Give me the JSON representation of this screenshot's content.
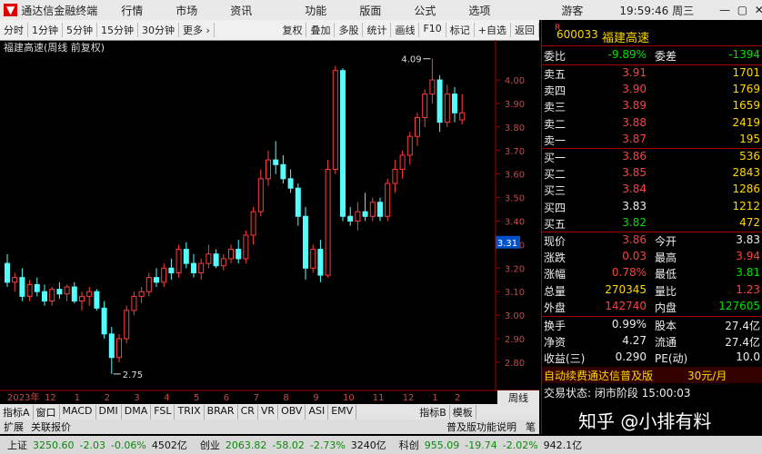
{
  "app": {
    "title": "通达信金融终端",
    "menu": [
      "行情",
      "市场",
      "资讯"
    ],
    "menu2": [
      "功能",
      "版面",
      "公式",
      "选项"
    ],
    "user": "游客",
    "time": "19:59:46 周三"
  },
  "toolbar": {
    "left": [
      "分时",
      "1分钟",
      "5分钟",
      "15分钟",
      "30分钟",
      "更多 ›"
    ],
    "right": [
      "复权",
      "叠加",
      "多股",
      "统计",
      "画线",
      "F10",
      "标记",
      "+自选",
      "返回"
    ]
  },
  "chart_data": {
    "type": "candlestick",
    "title": "福建高速(周线 前复权)",
    "categories": [
      "2023年",
      null,
      null,
      null,
      null,
      "12",
      null,
      null,
      null,
      "1",
      null,
      null,
      null,
      "2",
      null,
      null,
      null,
      "3",
      null,
      null,
      null,
      "4",
      null,
      null,
      null,
      "5",
      null,
      null,
      null,
      "6",
      null,
      null,
      null,
      "7",
      null,
      null,
      null,
      "8",
      null,
      null,
      null,
      "9",
      null,
      null,
      null,
      "10",
      null,
      null,
      null,
      "11",
      null,
      null,
      null,
      "12",
      null,
      null,
      null,
      "1",
      null,
      null,
      "2",
      null
    ],
    "open": [
      3.22,
      3.14,
      3.16,
      3.08,
      3.13,
      3.1,
      3.06,
      3.11,
      3.09,
      3.12,
      3.06,
      3.08,
      3.1,
      3.03,
      2.92,
      2.82,
      2.9,
      3.02,
      3.08,
      3.1,
      3.16,
      3.14,
      3.2,
      3.18,
      3.28,
      3.22,
      3.18,
      3.22,
      3.26,
      3.21,
      3.24,
      3.28,
      3.24,
      3.34,
      3.44,
      3.58,
      3.66,
      3.64,
      3.58,
      3.54,
      3.42,
      3.2,
      3.28,
      3.17,
      3.62,
      4.04,
      3.42,
      3.4,
      3.44,
      3.42,
      3.48,
      3.42,
      3.56,
      3.62,
      3.68,
      3.76,
      3.84,
      3.94,
      4.0,
      3.82,
      3.94,
      3.83
    ],
    "high": [
      3.26,
      3.18,
      3.2,
      3.15,
      3.16,
      3.13,
      3.12,
      3.14,
      3.13,
      3.14,
      3.1,
      3.12,
      3.11,
      3.06,
      2.95,
      2.92,
      3.04,
      3.1,
      3.12,
      3.18,
      3.2,
      3.22,
      3.24,
      3.3,
      3.31,
      3.26,
      3.24,
      3.3,
      3.28,
      3.26,
      3.3,
      3.32,
      3.36,
      3.46,
      3.62,
      3.7,
      3.74,
      3.68,
      3.62,
      3.56,
      3.46,
      3.3,
      3.32,
      3.66,
      4.06,
      4.05,
      3.46,
      3.48,
      3.52,
      3.5,
      3.5,
      3.58,
      3.66,
      3.7,
      3.78,
      3.86,
      3.96,
      4.09,
      4.02,
      3.98,
      3.97,
      3.94
    ],
    "low": [
      3.12,
      3.1,
      3.06,
      3.06,
      3.08,
      3.04,
      3.04,
      3.07,
      3.06,
      3.05,
      3.02,
      3.04,
      3.02,
      2.9,
      2.75,
      2.8,
      2.88,
      3.0,
      3.05,
      3.08,
      3.12,
      3.12,
      3.15,
      3.16,
      3.2,
      3.16,
      3.15,
      3.2,
      3.2,
      3.19,
      3.22,
      3.22,
      3.22,
      3.3,
      3.42,
      3.55,
      3.6,
      3.56,
      3.52,
      3.38,
      3.15,
      3.18,
      3.14,
      3.16,
      3.6,
      3.4,
      3.38,
      3.36,
      3.4,
      3.4,
      3.4,
      3.4,
      3.52,
      3.58,
      3.64,
      3.72,
      3.8,
      3.9,
      3.78,
      3.8,
      3.82,
      3.81
    ],
    "close": [
      3.14,
      3.16,
      3.08,
      3.13,
      3.1,
      3.06,
      3.11,
      3.09,
      3.12,
      3.06,
      3.08,
      3.1,
      3.03,
      2.92,
      2.82,
      2.9,
      3.02,
      3.08,
      3.1,
      3.16,
      3.14,
      3.2,
      3.18,
      3.28,
      3.22,
      3.18,
      3.22,
      3.26,
      3.21,
      3.24,
      3.28,
      3.24,
      3.34,
      3.44,
      3.58,
      3.66,
      3.64,
      3.58,
      3.54,
      3.42,
      3.2,
      3.28,
      3.17,
      3.62,
      4.04,
      3.42,
      3.4,
      3.44,
      3.42,
      3.48,
      3.42,
      3.56,
      3.62,
      3.68,
      3.76,
      3.84,
      3.94,
      4.0,
      3.82,
      3.94,
      3.86,
      3.86
    ],
    "up_color": "#ff3c3c",
    "down_color": "#54fcfc",
    "ylim": [
      2.68,
      4.17
    ],
    "yticks": [
      {
        "value": 2.8,
        "label": "2.80"
      },
      {
        "value": 2.9,
        "label": "2.90"
      },
      {
        "value": 3.0,
        "label": "3.00"
      },
      {
        "value": 3.1,
        "label": "3.10"
      },
      {
        "value": 3.2,
        "label": "3.20"
      },
      {
        "value": 3.3,
        "label": "3.30"
      },
      {
        "value": 3.4,
        "label": "3.40"
      },
      {
        "value": 3.5,
        "label": "3.50"
      },
      {
        "value": 3.6,
        "label": "3.60"
      },
      {
        "value": 3.7,
        "label": "3.70"
      },
      {
        "value": 3.8,
        "label": "3.80"
      },
      {
        "value": 3.9,
        "label": "3.90"
      },
      {
        "value": 4.0,
        "label": "4.00"
      }
    ],
    "high_label": 4.09,
    "low_label": 2.75,
    "cursor_value": 3.31,
    "grid": false
  },
  "tabs": {
    "a": [
      "指标A",
      "窗口",
      "MACD",
      "DMI",
      "DMA",
      "FSL",
      "TRIX",
      "BRAR",
      "CR",
      "VR",
      "OBV",
      "ASI",
      "EMV"
    ],
    "b": [
      "指标B",
      "模板"
    ],
    "period": "周线"
  },
  "footer": {
    "left": [
      "扩展",
      "关联报价"
    ],
    "right": [
      "普及版功能说明",
      "笔"
    ]
  },
  "quote": {
    "tag": "R",
    "code": "600033",
    "name": "福建高速",
    "ratio": [
      "委比",
      "-9.89%",
      "委差",
      "-1394"
    ],
    "asks": [
      [
        "卖五",
        "3.91",
        "1701"
      ],
      [
        "卖四",
        "3.90",
        "1769"
      ],
      [
        "卖三",
        "3.89",
        "1659"
      ],
      [
        "卖二",
        "3.88",
        "2419"
      ],
      [
        "卖一",
        "3.87",
        "195"
      ]
    ],
    "bids": [
      [
        "买一",
        "3.86",
        "536"
      ],
      [
        "买二",
        "3.85",
        "2843"
      ],
      [
        "买三",
        "3.84",
        "1286"
      ],
      [
        "买四",
        "3.83",
        "1212"
      ],
      [
        "买五",
        "3.82",
        "472"
      ]
    ],
    "stats": [
      [
        "现价",
        "3.86",
        "今开",
        "3.83"
      ],
      [
        "涨跌",
        "0.03",
        "最高",
        "3.94"
      ],
      [
        "涨幅",
        "0.78%",
        "最低",
        "3.81"
      ],
      [
        "总量",
        "270345",
        "量比",
        "1.23"
      ],
      [
        "外盘",
        "142740",
        "内盘",
        "127605"
      ]
    ],
    "finance": [
      [
        "换手",
        "0.99%",
        "股本",
        "27.4亿"
      ],
      [
        "净资",
        "4.27",
        "流通",
        "27.4亿"
      ],
      [
        "收益(三)",
        "0.290",
        "PE(动)",
        "10.0"
      ]
    ],
    "promo": "自动续费通达信普及版",
    "promo_price": "30元/月",
    "status": "交易状态: 闭市阶段 15:00:03"
  },
  "status_bar": [
    [
      "上证",
      "3250.60",
      "-2.03",
      "-0.06%",
      "4502亿"
    ],
    [
      "创业",
      "2063.82",
      "-58.02",
      "-2.73%",
      "3240亿"
    ],
    [
      "科创",
      "955.09",
      "-19.74",
      "-2.02%",
      "942.1亿"
    ]
  ],
  "watermark": "知乎 @小排有料"
}
